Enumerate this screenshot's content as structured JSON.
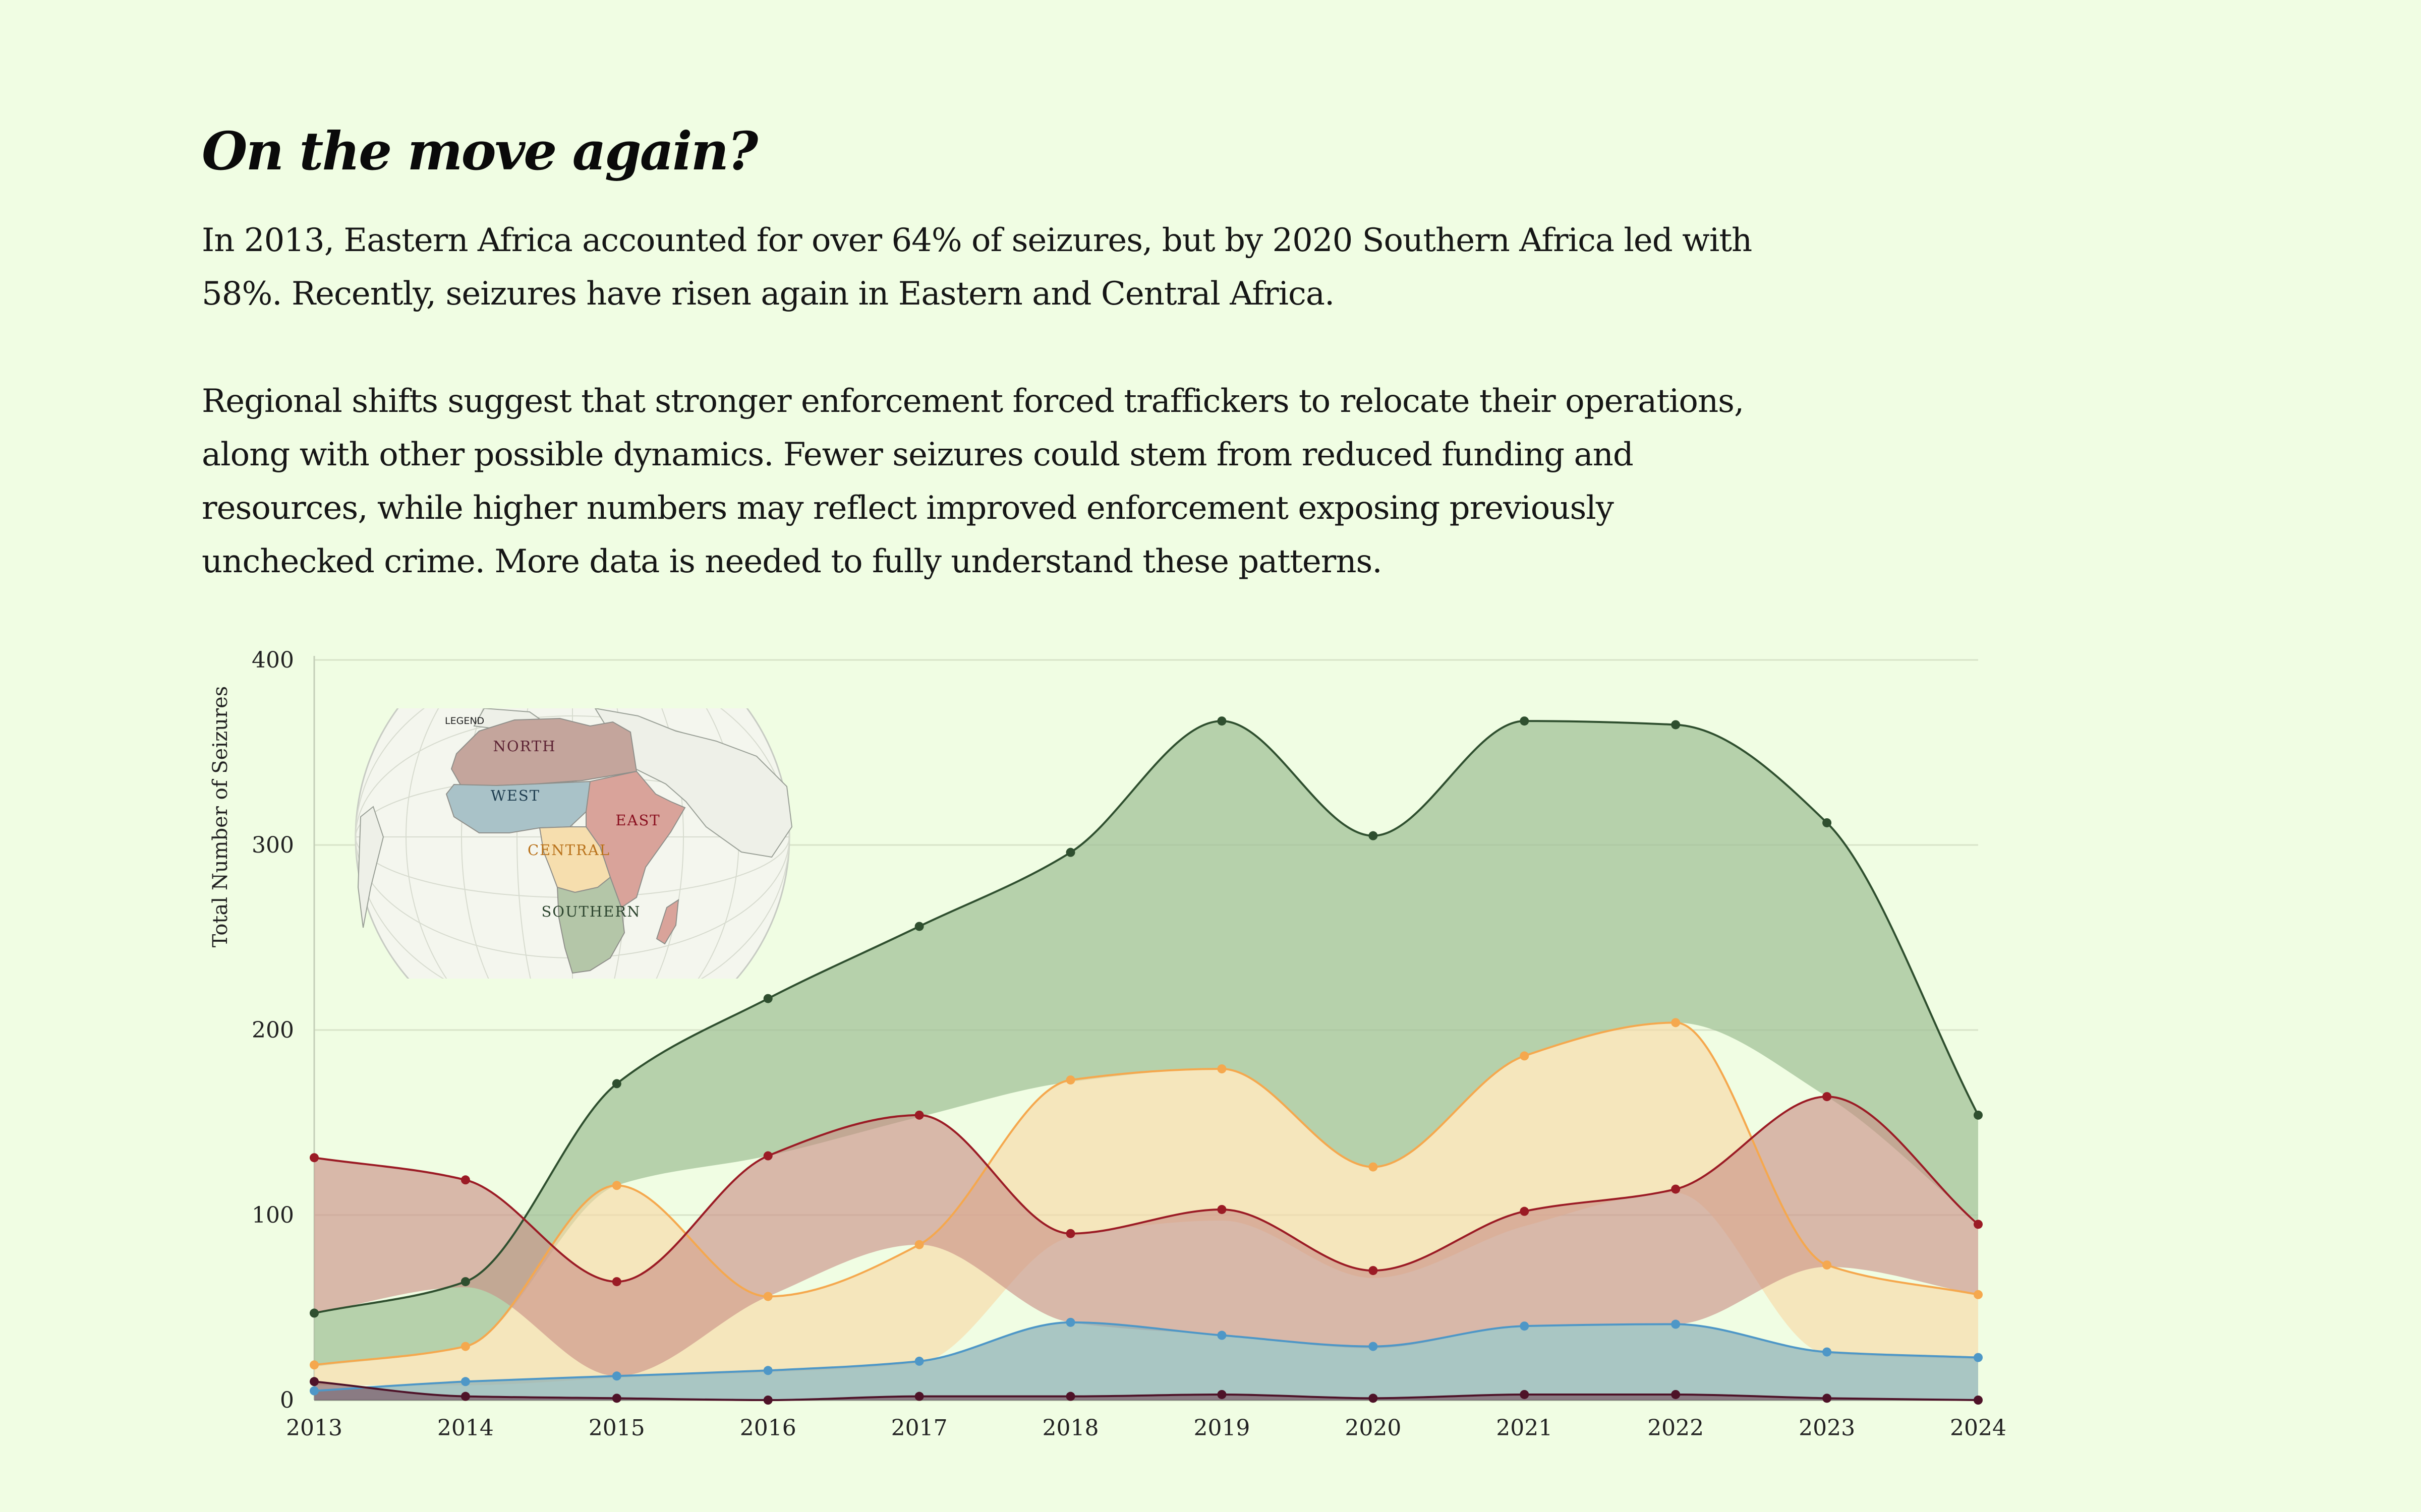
{
  "heading": "On the move again?",
  "paragraphs": [
    "In 2013, Eastern Africa accounted for over 64% of seizures, but by 2020 Southern Africa led with 58%. Recently, seizures have risen again in Eastern and Central Africa.",
    "Regional shifts suggest that stronger enforcement forced traffickers to relocate their operations, along with other possible dynamics. Fewer seizures could stem from reduced funding and resources, while higher numbers may reflect improved enforcement exposing previously unchecked crime. More data is needed to fully understand these patterns."
  ],
  "map_legend": {
    "title": "LEGEND",
    "regions": [
      {
        "key": "north",
        "label": "NORTH",
        "color": "#c4a59c",
        "text_color": "#5c2233"
      },
      {
        "key": "west",
        "label": "WEST",
        "color": "#a9c2c8",
        "text_color": "#1e3d50"
      },
      {
        "key": "east",
        "label": "EAST",
        "color": "#d9a39a",
        "text_color": "#8a1020"
      },
      {
        "key": "central",
        "label": "CENTRAL",
        "color": "#f6deae",
        "text_color": "#b9721b"
      },
      {
        "key": "southern",
        "label": "SOUTHERN",
        "color": "#b4c6a8",
        "text_color": "#2e4630"
      }
    ]
  },
  "chart_data": {
    "type": "area",
    "title": "",
    "xlabel": "",
    "ylabel": "Total Number of Seizures",
    "ylim": [
      0,
      400
    ],
    "yticks": [
      0,
      100,
      200,
      300,
      400
    ],
    "grid": true,
    "x": [
      "2013",
      "2014",
      "2015",
      "2016",
      "2017",
      "2018",
      "2019",
      "2020",
      "2021",
      "2022",
      "2023",
      "2024"
    ],
    "series": [
      {
        "name": "Southern",
        "line_color": "#2f4f2f",
        "fill_color": "#9fbf95",
        "fill_opacity": 0.72,
        "values": [
          47,
          64,
          171,
          217,
          256,
          296,
          367,
          305,
          367,
          365,
          312,
          154
        ],
        "lower": [
          18,
          29,
          116,
          132,
          153,
          172,
          179,
          126,
          186,
          204,
          164,
          96
        ]
      },
      {
        "name": "Central",
        "line_color": "#f5a84e",
        "fill_color": "#f8d9a4",
        "fill_opacity": 0.62,
        "values": [
          19,
          29,
          116,
          56,
          84,
          173,
          179,
          126,
          186,
          204,
          73,
          57
        ],
        "lower": [
          8,
          8,
          12,
          15,
          20,
          88,
          97,
          66,
          94,
          112,
          25,
          22
        ]
      },
      {
        "name": "East",
        "line_color": "#9b1b25",
        "fill_color": "#c98e86",
        "fill_opacity": 0.62,
        "values": [
          131,
          119,
          64,
          132,
          154,
          90,
          103,
          70,
          102,
          114,
          164,
          95
        ],
        "lower": [
          47,
          61,
          13,
          56,
          84,
          42,
          35,
          28,
          40,
          41,
          72,
          57
        ]
      },
      {
        "name": "West",
        "line_color": "#4e97c7",
        "fill_color": "#8db0b7",
        "fill_opacity": 0.72,
        "values": [
          5,
          10,
          13,
          16,
          21,
          42,
          35,
          29,
          40,
          41,
          26,
          23
        ],
        "lower": [
          0,
          0,
          0,
          0,
          0,
          0,
          0,
          0,
          0,
          0,
          0,
          0
        ]
      },
      {
        "name": "North",
        "line_color": "#4e1228",
        "fill_color": "#6b3043",
        "fill_opacity": 0.5,
        "values": [
          10,
          2,
          1,
          0,
          2,
          2,
          3,
          1,
          3,
          3,
          1,
          0
        ],
        "lower": [
          0,
          0,
          0,
          0,
          0,
          0,
          0,
          0,
          0,
          0,
          0,
          0
        ]
      }
    ]
  }
}
